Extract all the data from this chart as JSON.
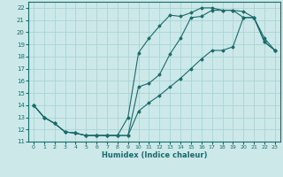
{
  "xlabel": "Humidex (Indice chaleur)",
  "xlim": [
    -0.5,
    23.5
  ],
  "ylim": [
    11,
    22.5
  ],
  "yticks": [
    11,
    12,
    13,
    14,
    15,
    16,
    17,
    18,
    19,
    20,
    21,
    22
  ],
  "xticks": [
    0,
    1,
    2,
    3,
    4,
    5,
    6,
    7,
    8,
    9,
    10,
    11,
    12,
    13,
    14,
    15,
    16,
    17,
    18,
    19,
    20,
    21,
    22,
    23
  ],
  "background_color": "#cce8e8",
  "grid_color": "#aad4d4",
  "line_color": "#1a6b6b",
  "curves": [
    {
      "x": [
        0,
        1,
        2,
        3,
        4,
        5,
        6,
        7,
        8,
        9,
        10,
        11,
        12,
        13,
        14,
        15,
        16,
        17,
        18,
        19,
        20,
        21,
        22,
        23
      ],
      "y": [
        14,
        13,
        12.5,
        11.8,
        11.7,
        11.5,
        11.5,
        11.5,
        11.5,
        13.0,
        18.3,
        19.5,
        20.5,
        21.4,
        21.3,
        21.6,
        22.0,
        22.0,
        21.8,
        21.8,
        21.2,
        21.2,
        19.2,
        18.5
      ]
    },
    {
      "x": [
        0,
        1,
        2,
        3,
        4,
        5,
        6,
        7,
        8,
        9,
        10,
        11,
        12,
        13,
        14,
        15,
        16,
        17,
        18,
        19,
        20,
        21,
        22,
        23
      ],
      "y": [
        14,
        13,
        12.5,
        11.8,
        11.7,
        11.5,
        11.5,
        11.5,
        11.5,
        11.5,
        15.5,
        15.8,
        16.5,
        18.2,
        19.5,
        21.2,
        21.3,
        21.8,
        21.8,
        21.8,
        21.7,
        21.2,
        19.5,
        18.5
      ]
    },
    {
      "x": [
        0,
        1,
        2,
        3,
        4,
        5,
        6,
        7,
        8,
        9,
        10,
        11,
        12,
        13,
        14,
        15,
        16,
        17,
        18,
        19,
        20,
        21,
        22,
        23
      ],
      "y": [
        14,
        13,
        12.5,
        11.8,
        11.7,
        11.5,
        11.5,
        11.5,
        11.5,
        11.5,
        13.5,
        14.2,
        14.8,
        15.5,
        16.2,
        17.0,
        17.8,
        18.5,
        18.5,
        18.8,
        21.2,
        21.2,
        19.2,
        18.5
      ]
    }
  ]
}
